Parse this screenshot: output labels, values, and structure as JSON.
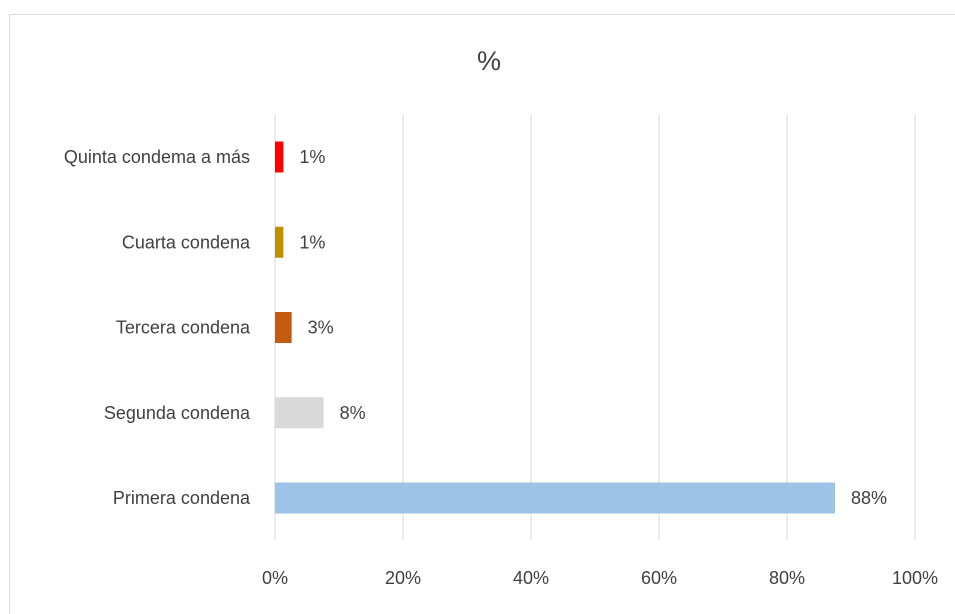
{
  "chart_data": {
    "type": "bar",
    "orientation": "horizontal",
    "title": "%",
    "categories": [
      "Primera condena",
      "Segunda condena",
      "Tercera condena",
      "Cuarta condena",
      "Quinta condema a más"
    ],
    "values": [
      87.5,
      7.6,
      2.6,
      1.3,
      1.3
    ],
    "data_labels": [
      "88%",
      "8%",
      "3%",
      "1%",
      "1%"
    ],
    "colors": [
      "#9dc3e6",
      "#d9d9d9",
      "#c55a11",
      "#bf9000",
      "#ff0000"
    ],
    "xlim": [
      0,
      100
    ],
    "x_ticks": [
      0,
      20,
      40,
      60,
      80,
      100
    ],
    "x_tick_labels": [
      "0%",
      "20%",
      "40%",
      "60%",
      "80%",
      "100%"
    ],
    "grid": true,
    "legend": "none"
  }
}
